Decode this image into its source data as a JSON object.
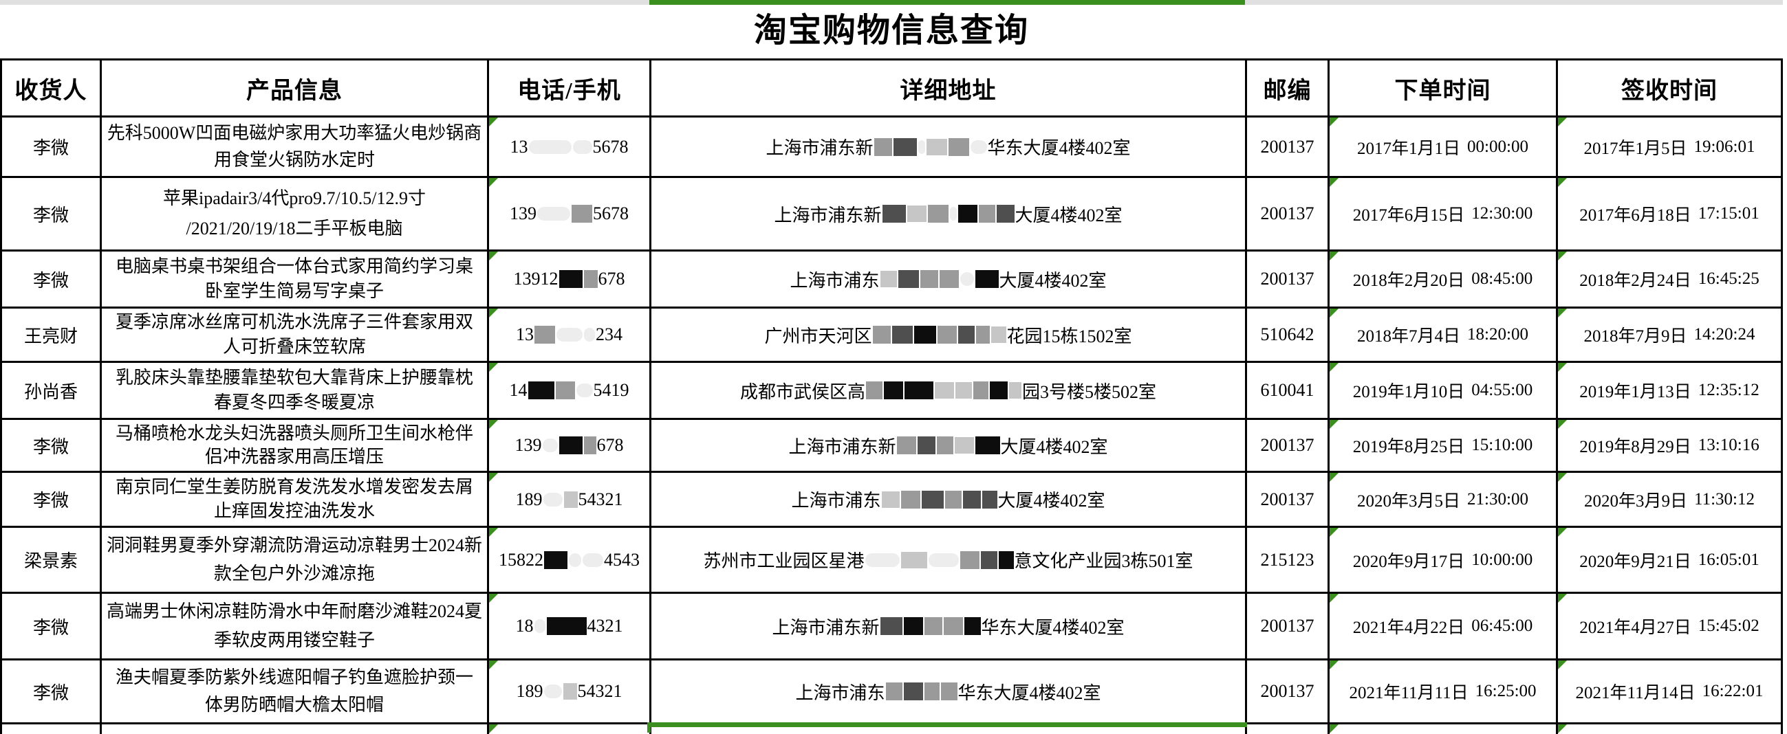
{
  "title": "淘宝购物信息查询",
  "colors": {
    "green": "#3a8f1f",
    "strip_gray": "#e0e0e0",
    "redact": {
      "black": "#0d0d0d",
      "dark": "#4f4f4f",
      "gray": "#9a9a9a",
      "light": "#c6c6c6",
      "faint": "#ededed"
    }
  },
  "columns": [
    "收货人",
    "产品信息",
    "电话/手机",
    "详细地址",
    "邮编",
    "下单时间",
    "签收时间"
  ],
  "rows": [
    {
      "recipient": "李微",
      "product_lines": [
        "先科5000W凹面电磁炉家用大功率猛火电炒锅商",
        "用食堂火锅防水定时"
      ],
      "phone": {
        "pre": "13",
        "blocks": [
          [
            62,
            "faint"
          ],
          [
            28,
            "faint"
          ]
        ],
        "suf": "5678"
      },
      "address": {
        "pre": "上海市浦东新",
        "blocks": [
          [
            26,
            "gray"
          ],
          [
            34,
            "dark"
          ],
          [
            10,
            "faint"
          ],
          [
            30,
            "light"
          ],
          [
            30,
            "gray"
          ],
          [
            24,
            "faint"
          ]
        ],
        "suf": "华东大厦4楼402室"
      },
      "zip": "200137",
      "ordered": [
        "2017年1月1日",
        "00:00:00"
      ],
      "signed": [
        "2017年1月5日",
        "19:06:01"
      ]
    },
    {
      "recipient": "李微",
      "product_lines": [
        "苹果ipadair3/4代pro9.7/10.5/12.9寸",
        "/2021/20/19/18二手平板电脑"
      ],
      "phone": {
        "pre": "139",
        "blocks": [
          [
            48,
            "faint"
          ],
          [
            30,
            "gray"
          ]
        ],
        "suf": "5678"
      },
      "address": {
        "pre": "上海市浦东新",
        "blocks": [
          [
            34,
            "dark"
          ],
          [
            28,
            "light"
          ],
          [
            30,
            "gray"
          ],
          [
            10,
            "faint"
          ],
          [
            28,
            "black"
          ],
          [
            24,
            "gray"
          ],
          [
            26,
            "dark"
          ]
        ],
        "suf": "大厦4楼402室"
      },
      "zip": "200137",
      "ordered": [
        "2017年6月15日",
        "12:30:00"
      ],
      "signed": [
        "2017年6月18日",
        "17:15:01"
      ]
    },
    {
      "recipient": "李微",
      "product_lines": [
        "电脑桌书桌书架组合一体台式家用简约学习桌",
        "卧室学生简易写字桌子"
      ],
      "phone": {
        "pre": "13912",
        "blocks": [
          [
            34,
            "black"
          ],
          [
            20,
            "gray"
          ]
        ],
        "suf": "678"
      },
      "address": {
        "pre": "上海市浦东",
        "blocks": [
          [
            24,
            "light"
          ],
          [
            30,
            "dark"
          ],
          [
            26,
            "gray"
          ],
          [
            28,
            "gray"
          ],
          [
            20,
            "faint"
          ],
          [
            34,
            "black"
          ]
        ],
        "suf": "大厦4楼402室"
      },
      "zip": "200137",
      "ordered": [
        "2018年2月20日",
        "08:45:00"
      ],
      "signed": [
        "2018年2月24日",
        "16:45:25"
      ]
    },
    {
      "recipient": "王亮财",
      "product_lines": [
        "夏季凉席冰丝席可机洗水洗席子三件套家用双",
        "人可折叠床笠软席"
      ],
      "phone": {
        "pre": "13",
        "blocks": [
          [
            30,
            "gray"
          ],
          [
            38,
            "faint"
          ],
          [
            16,
            "faint"
          ]
        ],
        "suf": "234"
      },
      "address": {
        "pre": "广州市天河区",
        "blocks": [
          [
            26,
            "gray"
          ],
          [
            30,
            "dark"
          ],
          [
            32,
            "black"
          ],
          [
            28,
            "gray"
          ],
          [
            24,
            "dark"
          ],
          [
            20,
            "gray"
          ],
          [
            22,
            "light"
          ]
        ],
        "suf": "花园15栋1502室"
      },
      "zip": "510642",
      "ordered": [
        "2018年7月4日",
        "18:20:00"
      ],
      "signed": [
        "2018年7月9日",
        "14:20:24"
      ]
    },
    {
      "recipient": "孙尚香",
      "product_lines": [
        "乳胶床头靠垫腰靠垫软包大靠背床上护腰靠枕",
        "春夏冬四季冬暖夏凉"
      ],
      "phone": {
        "pre": "14",
        "blocks": [
          [
            38,
            "black"
          ],
          [
            28,
            "gray"
          ],
          [
            24,
            "faint"
          ]
        ],
        "suf": "5419"
      },
      "address": {
        "pre": "成都市武侯区高",
        "blocks": [
          [
            24,
            "gray"
          ],
          [
            28,
            "black"
          ],
          [
            42,
            "black"
          ],
          [
            28,
            "light"
          ],
          [
            24,
            "light"
          ],
          [
            22,
            "gray"
          ],
          [
            26,
            "black"
          ],
          [
            18,
            "light"
          ]
        ],
        "suf": "园3号楼5楼502室"
      },
      "zip": "610041",
      "ordered": [
        "2019年1月10日",
        "04:55:00"
      ],
      "signed": [
        "2019年1月13日",
        "12:35:12"
      ]
    },
    {
      "recipient": "李微",
      "product_lines": [
        "马桶喷枪水龙头妇洗器喷头厕所卫生间水枪伴",
        "侣冲洗器家用高压增压"
      ],
      "phone": {
        "pre": "139",
        "blocks": [
          [
            22,
            "faint"
          ],
          [
            34,
            "black"
          ],
          [
            18,
            "gray"
          ]
        ],
        "suf": "678"
      },
      "address": {
        "pre": "上海市浦东新",
        "blocks": [
          [
            28,
            "gray"
          ],
          [
            26,
            "dark"
          ],
          [
            24,
            "gray"
          ],
          [
            28,
            "light"
          ],
          [
            36,
            "black"
          ]
        ],
        "suf": "大厦4楼402室"
      },
      "zip": "200137",
      "ordered": [
        "2019年8月25日",
        "15:10:00"
      ],
      "signed": [
        "2019年8月29日",
        "13:10:16"
      ]
    },
    {
      "recipient": "李微",
      "product_lines": [
        "南京同仁堂生姜防脱育发洗发水增发密发去屑",
        "止痒固发控油洗发水"
      ],
      "phone": {
        "pre": "189",
        "blocks": [
          [
            28,
            "faint"
          ],
          [
            20,
            "light"
          ]
        ],
        "suf": "54321"
      },
      "address": {
        "pre": "上海市浦东",
        "blocks": [
          [
            26,
            "light"
          ],
          [
            28,
            "gray"
          ],
          [
            32,
            "dark"
          ],
          [
            24,
            "gray"
          ],
          [
            26,
            "dark"
          ],
          [
            22,
            "dark"
          ]
        ],
        "suf": "大厦4楼402室"
      },
      "zip": "200137",
      "ordered": [
        "2020年3月5日",
        "21:30:00"
      ],
      "signed": [
        "2020年3月9日",
        "11:30:12"
      ]
    },
    {
      "recipient": "梁景素",
      "product_lines": [
        "洞洞鞋男夏季外穿潮流防滑运动凉鞋男士2024新",
        "款全包户外沙滩凉拖"
      ],
      "phone": {
        "pre": "15822",
        "blocks": [
          [
            34,
            "black"
          ],
          [
            18,
            "faint"
          ],
          [
            30,
            "faint"
          ]
        ],
        "suf": "4543"
      },
      "address": {
        "pre": "苏州市工业园区星港",
        "blocks": [
          [
            50,
            "faint"
          ],
          [
            38,
            "light"
          ],
          [
            44,
            "faint"
          ],
          [
            28,
            "gray"
          ],
          [
            24,
            "dark"
          ],
          [
            22,
            "black"
          ]
        ],
        "suf": "意文化产业园3栋501室"
      },
      "zip": "215123",
      "ordered": [
        "2020年9月17日",
        "10:00:00"
      ],
      "signed": [
        "2020年9月21日",
        "16:05:01"
      ]
    },
    {
      "recipient": "李微",
      "product_lines": [
        "高端男士休闲凉鞋防滑水中年耐磨沙滩鞋2024夏",
        "季软皮两用镂空鞋子"
      ],
      "phone": {
        "pre": "18",
        "blocks": [
          [
            16,
            "faint"
          ],
          [
            58,
            "black"
          ]
        ],
        "suf": "4321"
      },
      "address": {
        "pre": "上海市浦东新",
        "blocks": [
          [
            32,
            "dark"
          ],
          [
            28,
            "black"
          ],
          [
            26,
            "gray"
          ],
          [
            28,
            "gray"
          ],
          [
            24,
            "black"
          ]
        ],
        "suf": "华东大厦4楼402室"
      },
      "zip": "200137",
      "ordered": [
        "2021年4月22日",
        "06:45:00"
      ],
      "signed": [
        "2021年4月27日",
        "15:45:02"
      ]
    },
    {
      "recipient": "李微",
      "product_lines": [
        "渔夫帽夏季防紫外线遮阳帽子钓鱼遮脸护颈一",
        "体男防晒帽大檐太阳帽"
      ],
      "phone": {
        "pre": "189",
        "blocks": [
          [
            26,
            "faint"
          ],
          [
            20,
            "light"
          ]
        ],
        "suf": "54321"
      },
      "address": {
        "pre": "上海市浦东",
        "blocks": [
          [
            24,
            "gray"
          ],
          [
            28,
            "dark"
          ],
          [
            22,
            "gray"
          ],
          [
            24,
            "gray"
          ]
        ],
        "suf": "华东大厦4楼402室"
      },
      "zip": "200137",
      "ordered": [
        "2021年11月11日",
        "16:25:00"
      ],
      "signed": [
        "2021年11月14日",
        "16:22:01"
      ]
    }
  ]
}
